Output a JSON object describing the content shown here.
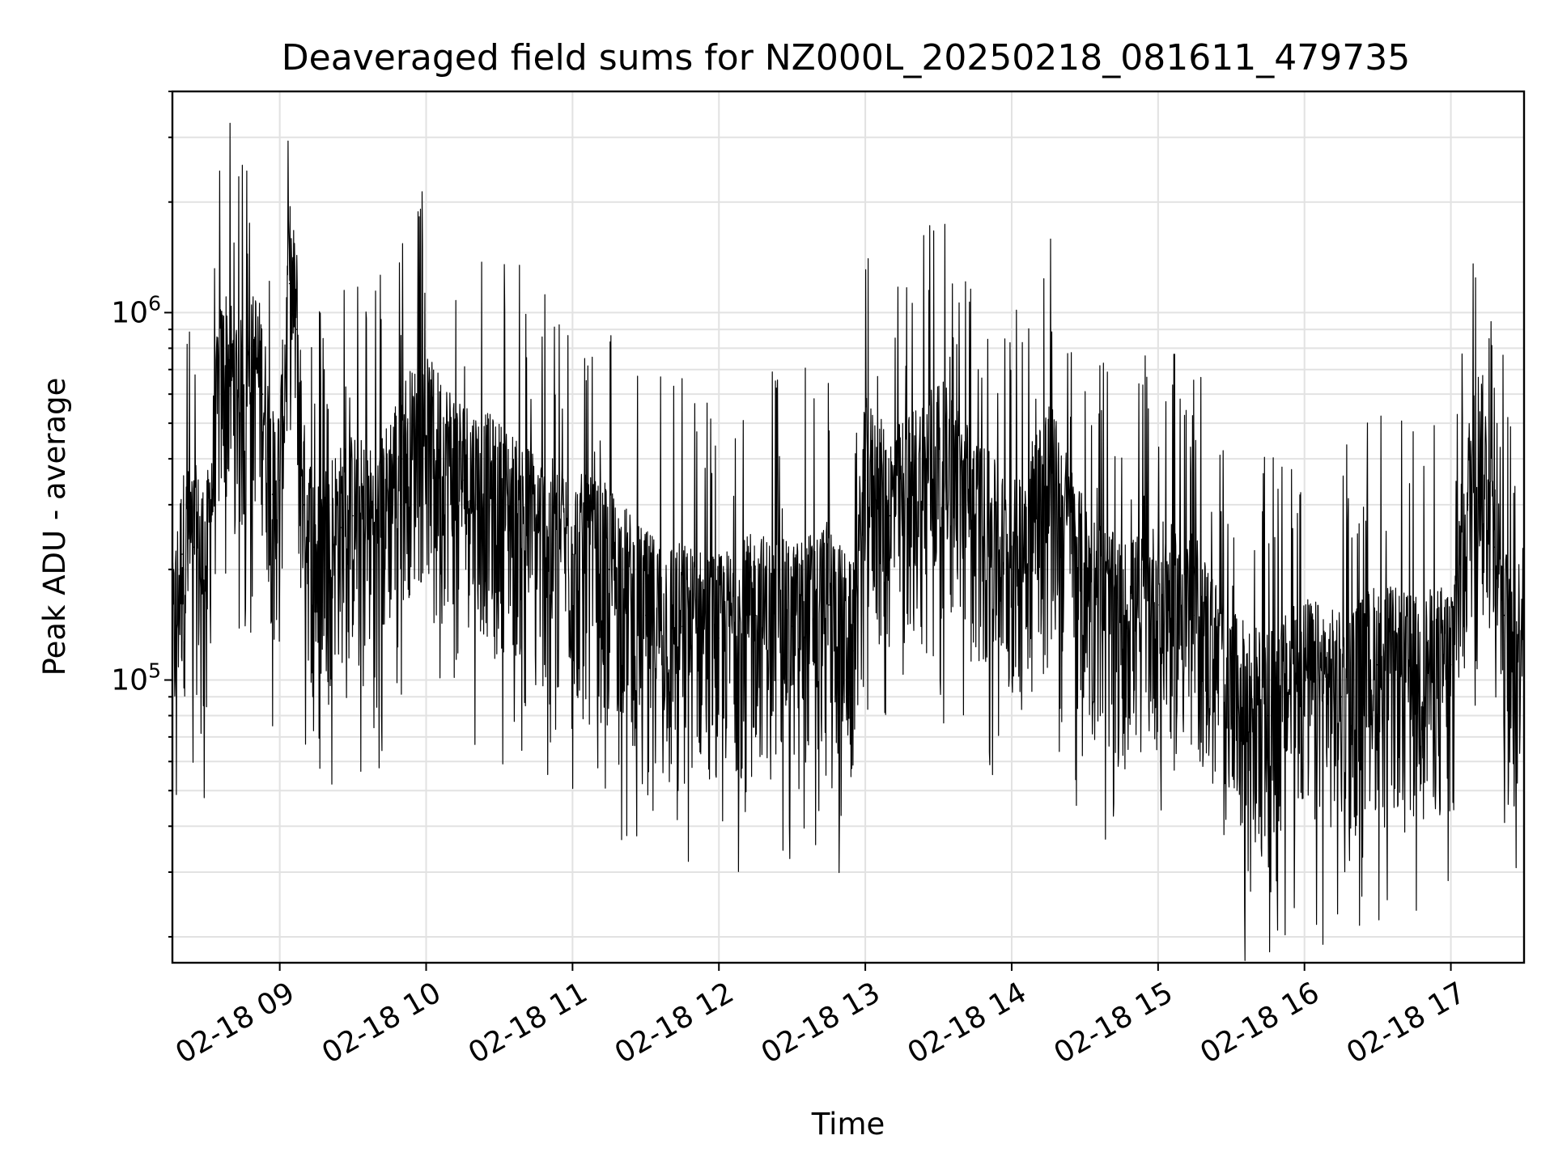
{
  "chart_data": {
    "type": "line",
    "title": "Deaveraged field sums for NZ000L_20250218_081611_479735",
    "xlabel": "Time",
    "ylabel": "Peak ADU - average",
    "yscale": "log",
    "ylim": [
      17000,
      4000000
    ],
    "xlim": [
      "2025-02-18 08:16",
      "2025-02-18 17:30"
    ],
    "grid": true,
    "x_ticks": [
      {
        "value": "2025-02-18 09:00",
        "label": "02-18 09"
      },
      {
        "value": "2025-02-18 10:00",
        "label": "02-18 10"
      },
      {
        "value": "2025-02-18 11:00",
        "label": "02-18 11"
      },
      {
        "value": "2025-02-18 12:00",
        "label": "02-18 12"
      },
      {
        "value": "2025-02-18 13:00",
        "label": "02-18 13"
      },
      {
        "value": "2025-02-18 14:00",
        "label": "02-18 14"
      },
      {
        "value": "2025-02-18 15:00",
        "label": "02-18 15"
      },
      {
        "value": "2025-02-18 16:00",
        "label": "02-18 16"
      },
      {
        "value": "2025-02-18 17:00",
        "label": "02-18 17"
      }
    ],
    "y_ticks": [
      {
        "value": 100000,
        "mantissa": "10",
        "exponent": "5"
      },
      {
        "value": 1000000,
        "mantissa": "10",
        "exponent": "6"
      }
    ],
    "series": [
      {
        "color": "#000000",
        "x": [
          "2025-02-18 08:16",
          "2025-02-18 08:20",
          "2025-02-18 08:25",
          "2025-02-18 08:30",
          "2025-02-18 08:35",
          "2025-02-18 08:38",
          "2025-02-18 08:40",
          "2025-02-18 08:45",
          "2025-02-18 08:50",
          "2025-02-18 08:53",
          "2025-02-18 08:57",
          "2025-02-18 09:00",
          "2025-02-18 09:04",
          "2025-02-18 09:07",
          "2025-02-18 09:10",
          "2025-02-18 09:15",
          "2025-02-18 09:20",
          "2025-02-18 09:25",
          "2025-02-18 09:30",
          "2025-02-18 09:40",
          "2025-02-18 09:50",
          "2025-02-18 10:00",
          "2025-02-18 10:15",
          "2025-02-18 10:30",
          "2025-02-18 10:45",
          "2025-02-18 11:00",
          "2025-02-18 11:15",
          "2025-02-18 11:30",
          "2025-02-18 11:45",
          "2025-02-18 12:00",
          "2025-02-18 12:15",
          "2025-02-18 12:30",
          "2025-02-18 12:45",
          "2025-02-18 12:55",
          "2025-02-18 13:00",
          "2025-02-18 13:10",
          "2025-02-18 13:20",
          "2025-02-18 13:30",
          "2025-02-18 13:45",
          "2025-02-18 14:00",
          "2025-02-18 14:15",
          "2025-02-18 14:30",
          "2025-02-18 14:45",
          "2025-02-18 15:00",
          "2025-02-18 15:15",
          "2025-02-18 15:30",
          "2025-02-18 15:45",
          "2025-02-18 16:00",
          "2025-02-18 16:15",
          "2025-02-18 16:30",
          "2025-02-18 16:45",
          "2025-02-18 17:00",
          "2025-02-18 17:07",
          "2025-02-18 17:12",
          "2025-02-18 17:18",
          "2025-02-18 17:22",
          "2025-02-18 17:26",
          "2025-02-18 17:30"
        ],
        "values": [
          120000,
          220000,
          230000,
          200000,
          600000,
          700000,
          650000,
          550000,
          700000,
          600000,
          320000,
          350000,
          1200000,
          900000,
          300000,
          200000,
          250000,
          260000,
          280000,
          250000,
          400000,
          450000,
          350000,
          300000,
          250000,
          220000,
          200000,
          150000,
          140000,
          130000,
          150000,
          140000,
          160000,
          120000,
          350000,
          280000,
          330000,
          400000,
          280000,
          200000,
          350000,
          180000,
          140000,
          160000,
          150000,
          90000,
          80000,
          100000,
          90000,
          110000,
          100000,
          110000,
          300000,
          450000,
          230000,
          150000,
          90000,
          200000
        ]
      }
    ]
  }
}
